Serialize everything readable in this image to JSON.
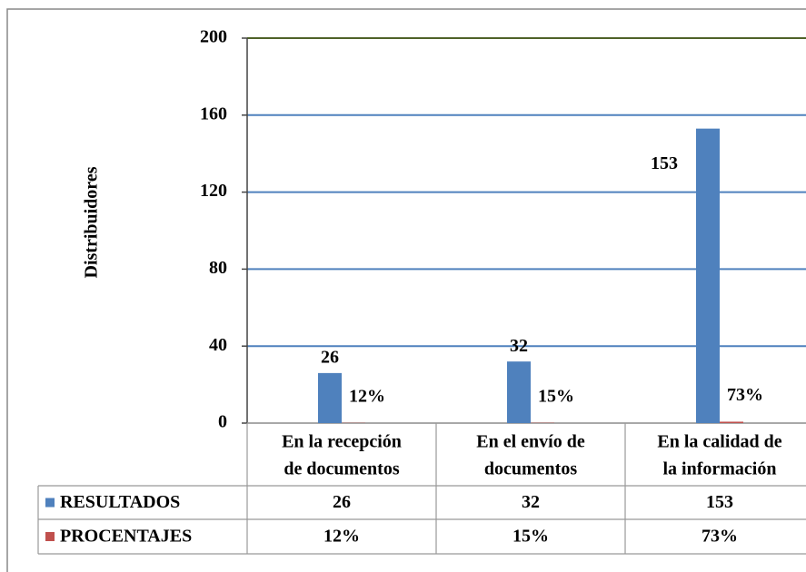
{
  "chart_data": {
    "type": "bar",
    "y_label": "Distribuidores",
    "categories": [
      [
        "En la recepción",
        "de documentos"
      ],
      [
        "En el envío de",
        "documentos"
      ],
      [
        "En la calidad de",
        "la información"
      ]
    ],
    "series": [
      {
        "name": "RESULTADOS",
        "color": "#4f81bd",
        "values": [
          26,
          32,
          153
        ]
      },
      {
        "name": "PROCENTAJES",
        "color": "#c0504d",
        "values": [
          0.12,
          0.15,
          0.73
        ],
        "value_labels": [
          "12%",
          "15%",
          "73%"
        ]
      }
    ],
    "ylim": [
      0,
      200
    ],
    "yticks": [
      0,
      40,
      80,
      120,
      160,
      200
    ],
    "grid": true
  }
}
